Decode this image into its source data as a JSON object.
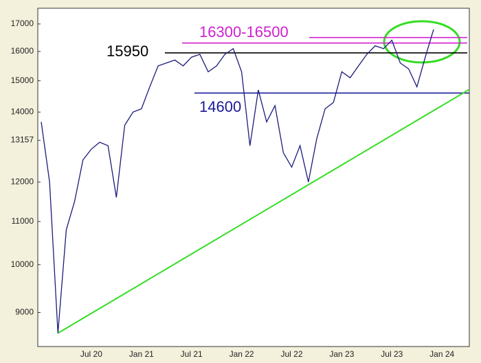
{
  "chart_data": {
    "type": "line",
    "color": "#1a1a7a",
    "log_scale": true,
    "x": [
      "Jan 20",
      "Feb 20",
      "Mar 20",
      "Apr 20",
      "May 20",
      "Jun 20",
      "Jul 20",
      "Aug 20",
      "Sep 20",
      "Oct 20",
      "Nov 20",
      "Dec 20",
      "Jan 21",
      "Feb 21",
      "Mar 21",
      "Apr 21",
      "May 21",
      "Jun 21",
      "Jul 21",
      "Aug 21",
      "Sep 21",
      "Oct 21",
      "Nov 21",
      "Dec 21",
      "Jan 22",
      "Feb 22",
      "Mar 22",
      "Apr 22",
      "May 22",
      "Jun 22",
      "Jul 22",
      "Aug 22",
      "Sep 22",
      "Oct 22",
      "Nov 22",
      "Dec 22",
      "Jan 23",
      "Feb 23",
      "Mar 23",
      "Apr 23",
      "May 23",
      "Jun 23",
      "Jul 23",
      "Aug 23",
      "Sep 23",
      "Oct 23",
      "Nov 23",
      "Dec 23"
    ],
    "values": [
      13700,
      12000,
      8600,
      10800,
      11500,
      12600,
      12900,
      13100,
      13000,
      11600,
      13600,
      14000,
      14100,
      14800,
      15500,
      15600,
      15700,
      15500,
      15800,
      15900,
      15300,
      15500,
      15900,
      16100,
      15300,
      13000,
      14700,
      13700,
      14200,
      12800,
      12400,
      13000,
      12000,
      13200,
      14100,
      14300,
      15300,
      15100,
      15500,
      15900,
      16200,
      16100,
      16400,
      15600,
      15400,
      14800,
      15800,
      16800
    ],
    "ylim": [
      8350,
      17600
    ],
    "yticks": [
      9000,
      10000,
      11000,
      12000,
      13157,
      14000,
      15000,
      16000,
      17000
    ],
    "xticks": [
      "Jul 20",
      "Jan 21",
      "Jul 21",
      "Jan 22",
      "Jul 22",
      "Jan 23",
      "Jul 23",
      "Jan 24"
    ],
    "levels": [
      {
        "label": "16300-16500",
        "values": [
          16300,
          16500
        ],
        "color": "#d020d0"
      },
      {
        "label": "15950",
        "values": [
          15950
        ],
        "color": "#000000"
      },
      {
        "label": "14600",
        "values": [
          14600
        ],
        "color": "#1a1a9a"
      }
    ],
    "trendline": {
      "x": [
        "Mar 20",
        "Jan 24"
      ],
      "values": [
        8600,
        14200
      ],
      "color": "#33dd22"
    }
  }
}
